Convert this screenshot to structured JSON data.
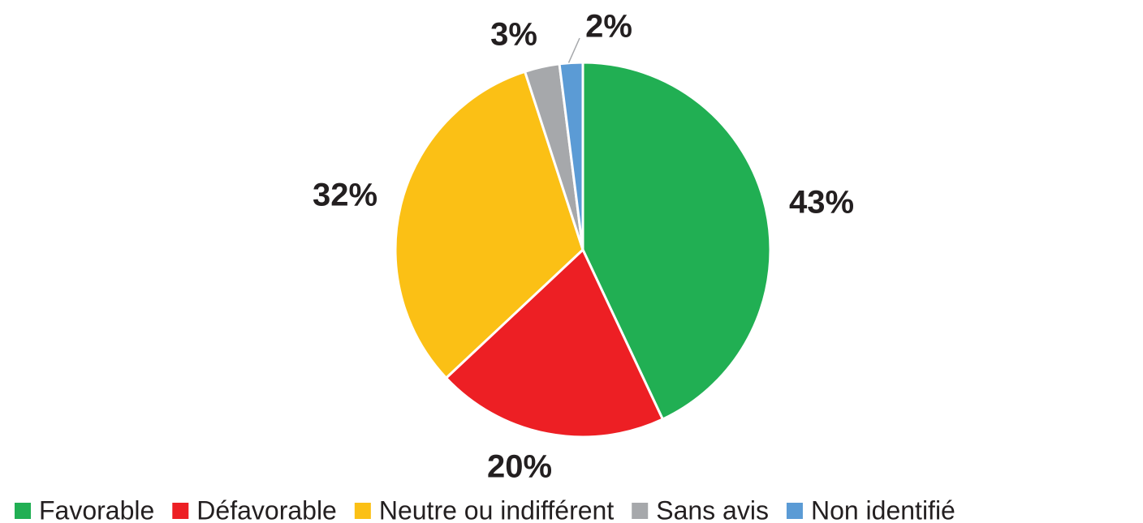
{
  "chart_data": {
    "type": "pie",
    "categories": [
      "Favorable",
      "Défavorable",
      "Neutre ou indifférent",
      "Sans avis",
      "Non identifié"
    ],
    "values": [
      43,
      20,
      32,
      3,
      2
    ],
    "value_labels": [
      "43%",
      "20%",
      "32%",
      "3%",
      "2%"
    ],
    "colors": [
      "#21af53",
      "#ed1f24",
      "#fbc015",
      "#a6a8ab",
      "#5b9bd5"
    ],
    "legend": "bottom"
  }
}
